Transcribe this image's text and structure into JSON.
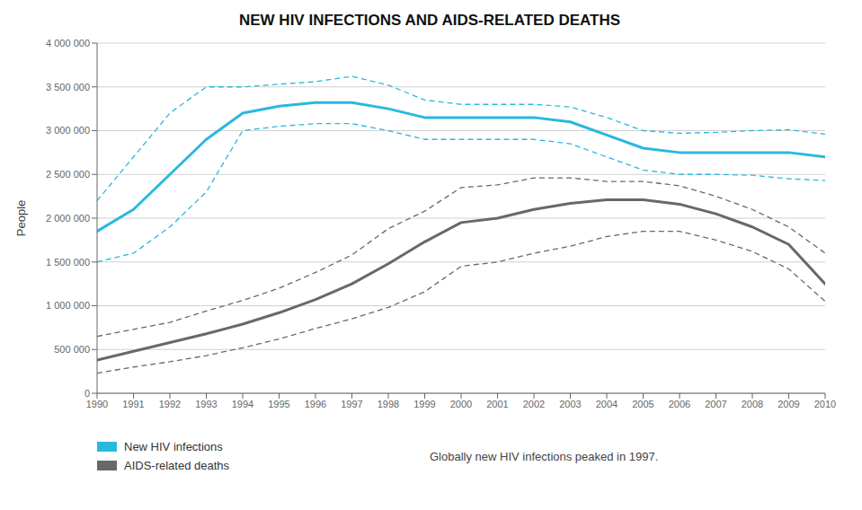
{
  "chart_data": {
    "type": "line",
    "title": "NEW HIV INFECTIONS AND AIDS-RELATED DEATHS",
    "y_label": "People",
    "x": [
      1990,
      1991,
      1992,
      1993,
      1994,
      1995,
      1996,
      1997,
      1998,
      1999,
      2000,
      2001,
      2002,
      2003,
      2004,
      2005,
      2006,
      2007,
      2008,
      2009,
      2010
    ],
    "xlim": [
      1990,
      2010
    ],
    "xticks": [
      1990,
      1991,
      1992,
      1993,
      1994,
      1995,
      1996,
      1997,
      1998,
      1999,
      2000,
      2001,
      2002,
      2003,
      2004,
      2005,
      2006,
      2007,
      2008,
      2009,
      2010
    ],
    "ylim": [
      0,
      4000000
    ],
    "yticks": [
      0,
      {
        "value": 500000,
        "label": "500 000"
      },
      {
        "value": 1000000,
        "label": "1 000 000"
      },
      {
        "value": 1500000,
        "label": "1 500 000"
      },
      {
        "value": 2000000,
        "label": "2 000 000"
      },
      {
        "value": 2500000,
        "label": "2 500 000"
      },
      {
        "value": 3000000,
        "label": "3 000 000"
      },
      {
        "value": 3500000,
        "label": "3 500 000"
      },
      {
        "value": 4000000,
        "label": "4 000 000"
      }
    ],
    "grid": true,
    "legend": "bottom",
    "annotation": "Globally new HIV infections peaked in 1997.",
    "series": [
      {
        "name": "New HIV infections",
        "color": "#29b8e0",
        "values": [
          1850000,
          2100000,
          2500000,
          2900000,
          3200000,
          3280000,
          3320000,
          3320000,
          3250000,
          3150000,
          3150000,
          3150000,
          3150000,
          3100000,
          2950000,
          2800000,
          2750000,
          2750000,
          2750000,
          2750000,
          2700000
        ],
        "upper": [
          2200000,
          2700000,
          3200000,
          3500000,
          3500000,
          3530000,
          3560000,
          3620000,
          3520000,
          3350000,
          3300000,
          3300000,
          3300000,
          3270000,
          3150000,
          3000000,
          2970000,
          2980000,
          3000000,
          3010000,
          2960000
        ],
        "lower": [
          1500000,
          1600000,
          1900000,
          2300000,
          3000000,
          3050000,
          3080000,
          3080000,
          3000000,
          2900000,
          2900000,
          2900000,
          2900000,
          2850000,
          2700000,
          2550000,
          2500000,
          2500000,
          2490000,
          2450000,
          2430000
        ]
      },
      {
        "name": "AIDS-related deaths",
        "color": "#686868",
        "values": [
          380000,
          480000,
          580000,
          680000,
          790000,
          920000,
          1070000,
          1250000,
          1480000,
          1730000,
          1950000,
          2000000,
          2100000,
          2170000,
          2210000,
          2210000,
          2160000,
          2050000,
          1900000,
          1700000,
          1250000
        ],
        "upper": [
          650000,
          730000,
          810000,
          940000,
          1060000,
          1200000,
          1380000,
          1580000,
          1880000,
          2080000,
          2350000,
          2380000,
          2460000,
          2460000,
          2420000,
          2420000,
          2370000,
          2250000,
          2100000,
          1900000,
          1600000
        ],
        "lower": [
          230000,
          300000,
          360000,
          430000,
          520000,
          620000,
          740000,
          850000,
          980000,
          1160000,
          1450000,
          1500000,
          1600000,
          1680000,
          1790000,
          1850000,
          1850000,
          1750000,
          1620000,
          1420000,
          1050000
        ]
      }
    ]
  }
}
